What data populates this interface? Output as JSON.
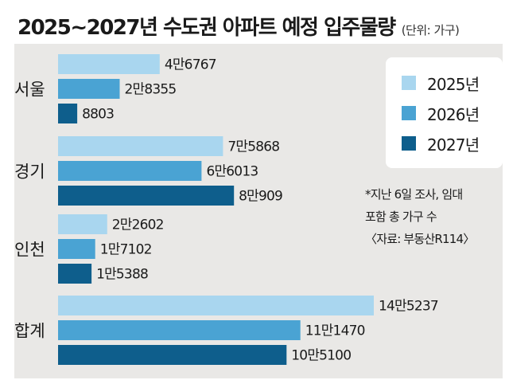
{
  "header": {
    "title": "2025~2027년 수도권 아파트 예정 입주물량",
    "unit": "(단위: 가구)"
  },
  "notes": {
    "footnote_line1": "*지난 6일 조사, 임대",
    "footnote_line2": "포함 총 가구 수",
    "source": "〈자료: 부동산R114〉"
  },
  "chart_data": {
    "type": "bar",
    "orientation": "horizontal",
    "title": "2025~2027년 수도권 아파트 예정 입주물량",
    "unit": "(단위: 가구)",
    "categories": [
      "서울",
      "경기",
      "인천",
      "합계"
    ],
    "series": [
      {
        "name": "2025년",
        "color": "#a9d6ef",
        "values": [
          46767,
          75868,
          22602,
          145237
        ],
        "labels": [
          "4만6767",
          "7만5868",
          "2만2602",
          "14만5237"
        ]
      },
      {
        "name": "2026년",
        "color": "#4aa3d3",
        "values": [
          28355,
          66013,
          17102,
          111470
        ],
        "labels": [
          "2만8355",
          "6만6013",
          "1만7102",
          "11만1470"
        ]
      },
      {
        "name": "2027년",
        "color": "#0e5e8c",
        "values": [
          8803,
          80909,
          15388,
          105100
        ],
        "labels": [
          "8803",
          "8만909",
          "1만5388",
          "10만5100"
        ]
      }
    ],
    "legend_position": "top-right",
    "grid": false
  }
}
